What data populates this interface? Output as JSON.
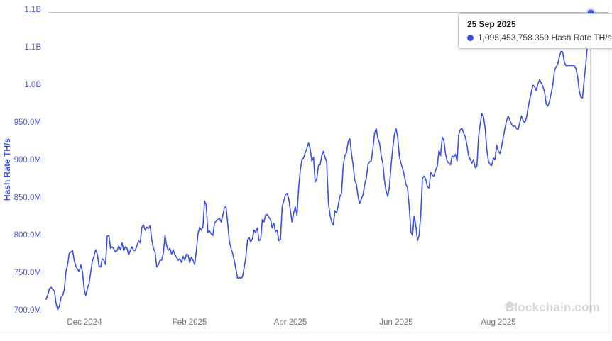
{
  "colors": {
    "bg": "#ffffff",
    "line": "#3d51e0",
    "y_tick": "#4d5ad0",
    "axis_title": "#3d51e0",
    "x_tick": "#6f6f6f",
    "crosshair": "#9aa0a6",
    "watermark": "#d5d7da",
    "frame": "#ececec",
    "tooltip_border": "#cccccc",
    "tooltip_date": "#111111",
    "tooltip_text": "#424242"
  },
  "tooltip": {
    "date": "25 Sep 2025",
    "value": "1,095,453,758.359 Hash Rate TH/s",
    "bullet_icon": "series-dot-icon"
  },
  "watermark": {
    "text": "Blockchain.com",
    "icon": "blockchain-diamond-icon"
  },
  "chart_data": {
    "type": "line",
    "title": "",
    "ylabel": "Hash Rate TH/s",
    "xlabel": "",
    "grid": false,
    "legend": false,
    "unit": "million TH/s",
    "ylim": [
      700,
      1100
    ],
    "y_tick_values": [
      1100,
      1050,
      1000,
      950,
      900,
      850,
      800,
      750,
      700
    ],
    "y_tick_labels": [
      "1.1B",
      "1.1B",
      "1.0B",
      "950.0M",
      "900.0M",
      "850.0M",
      "800.0M",
      "750.0M",
      "700.0M"
    ],
    "x_tick_labels": [
      "Dec 2024",
      "Feb 2025",
      "Apr 2025",
      "Jun 2025",
      "Aug 2025"
    ],
    "hover_point": {
      "date": "25 Sep 2025",
      "value_th_s": 1095453758.359,
      "value_m": 1095.454
    },
    "series": [
      {
        "name": "Hash Rate TH/s",
        "start_date": "2024-11-09",
        "end_date": "2025-09-29",
        "values": [
          714,
          720,
          728,
          730,
          727,
          725,
          709,
          700,
          705,
          716,
          719,
          727,
          751,
          760,
          775,
          777,
          779,
          766,
          758,
          754,
          751,
          760,
          751,
          728,
          719,
          728,
          735,
          750,
          765,
          771,
          780,
          774,
          758,
          757,
          768,
          766,
          760,
          798,
          799,
          782,
          784,
          781,
          777,
          779,
          785,
          780,
          789,
          779,
          784,
          782,
          773,
          779,
          784,
          779,
          779,
          785,
          792,
          789,
          810,
          813,
          806,
          810,
          808,
          812,
          793,
          782,
          777,
          757,
          760,
          766,
          766,
          775,
          799,
          785,
          779,
          782,
          774,
          780,
          773,
          770,
          766,
          768,
          763,
          771,
          766,
          774,
          773,
          763,
          770,
          766,
          760,
          778,
          801,
          810,
          806,
          810,
          845,
          839,
          803,
          805,
          801,
          799,
          815,
          818,
          820,
          822,
          817,
          825,
          836,
          837,
          815,
          792,
          782,
          775,
          765,
          754,
          742,
          743,
          742,
          744,
          756,
          770,
          793,
          796,
          790,
          795,
          806,
          803,
          809,
          792,
          794,
          820,
          817,
          826,
          827,
          823,
          820,
          809,
          815,
          804,
          806,
          792,
          794,
          837,
          845,
          853,
          855,
          848,
          832,
          817,
          829,
          837,
          826,
          862,
          886,
          900,
          902,
          909,
          915,
          922,
          914,
          898,
          903,
          870,
          874,
          892,
          893,
          905,
          911,
          903,
          897,
          843,
          826,
          817,
          813,
          832,
          829,
          839,
          851,
          855,
          892,
          905,
          909,
          924,
          928,
          908,
          893,
          872,
          867,
          851,
          841,
          848,
          853,
          867,
          875,
          893,
          897,
          898,
          914,
          935,
          941,
          928,
          922,
          905,
          895,
          872,
          858,
          851,
          864,
          892,
          914,
          933,
          941,
          930,
          905,
          895,
          888,
          879,
          867,
          862,
          837,
          804,
          799,
          825,
          812,
          792,
          799,
          826,
          875,
          878,
          874,
          864,
          862,
          883,
          879,
          878,
          886,
          891,
          912,
          905,
          930,
          925,
          908,
          898,
          895,
          893,
          905,
          903,
          907,
          898,
          933,
          940,
          941,
          935,
          930,
          919,
          905,
          900,
          895,
          900,
          889,
          891,
          930,
          947,
          961,
          957,
          942,
          914,
          898,
          893,
          892,
          902,
          900,
          919,
          911,
          908,
          917,
          930,
          941,
          952,
          958,
          952,
          947,
          944,
          945,
          941,
          940,
          949,
          958,
          952,
          949,
          955,
          968,
          980,
          990,
          999,
          997,
          992,
          1001,
          1006,
          1002,
          997,
          990,
          974,
          971,
          977,
          988,
          999,
          1018,
          1023,
          1027,
          1037,
          1044,
          1043,
          1029,
          1025,
          1025,
          1025,
          1025,
          1025,
          1025,
          1021,
          1011,
          992,
          983,
          982,
          1006,
          1027,
          1053,
          1076,
          1095.454,
          1079,
          1063,
          1054,
          1048,
          1053,
          1056
        ]
      }
    ]
  }
}
